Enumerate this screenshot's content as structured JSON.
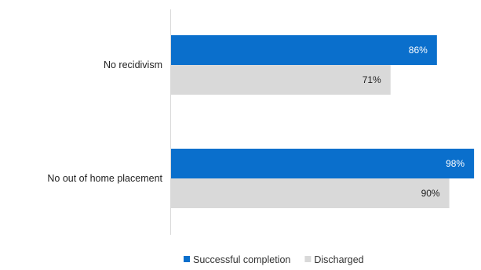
{
  "chart_data": {
    "type": "bar",
    "orientation": "horizontal",
    "categories": [
      "No recidivism",
      "No out of home placement"
    ],
    "series": [
      {
        "name": "Successful completion",
        "values": [
          86,
          98
        ],
        "color": "#0A6FCC",
        "label_color": "#ffffff"
      },
      {
        "name": "Discharged",
        "values": [
          71,
          90
        ],
        "color": "#D9D9D9",
        "label_color": "#222222"
      }
    ],
    "value_suffix": "%",
    "xlim": [
      0,
      100
    ],
    "grid": false,
    "legend": "bottom",
    "title": "",
    "xlabel": "",
    "ylabel": ""
  }
}
